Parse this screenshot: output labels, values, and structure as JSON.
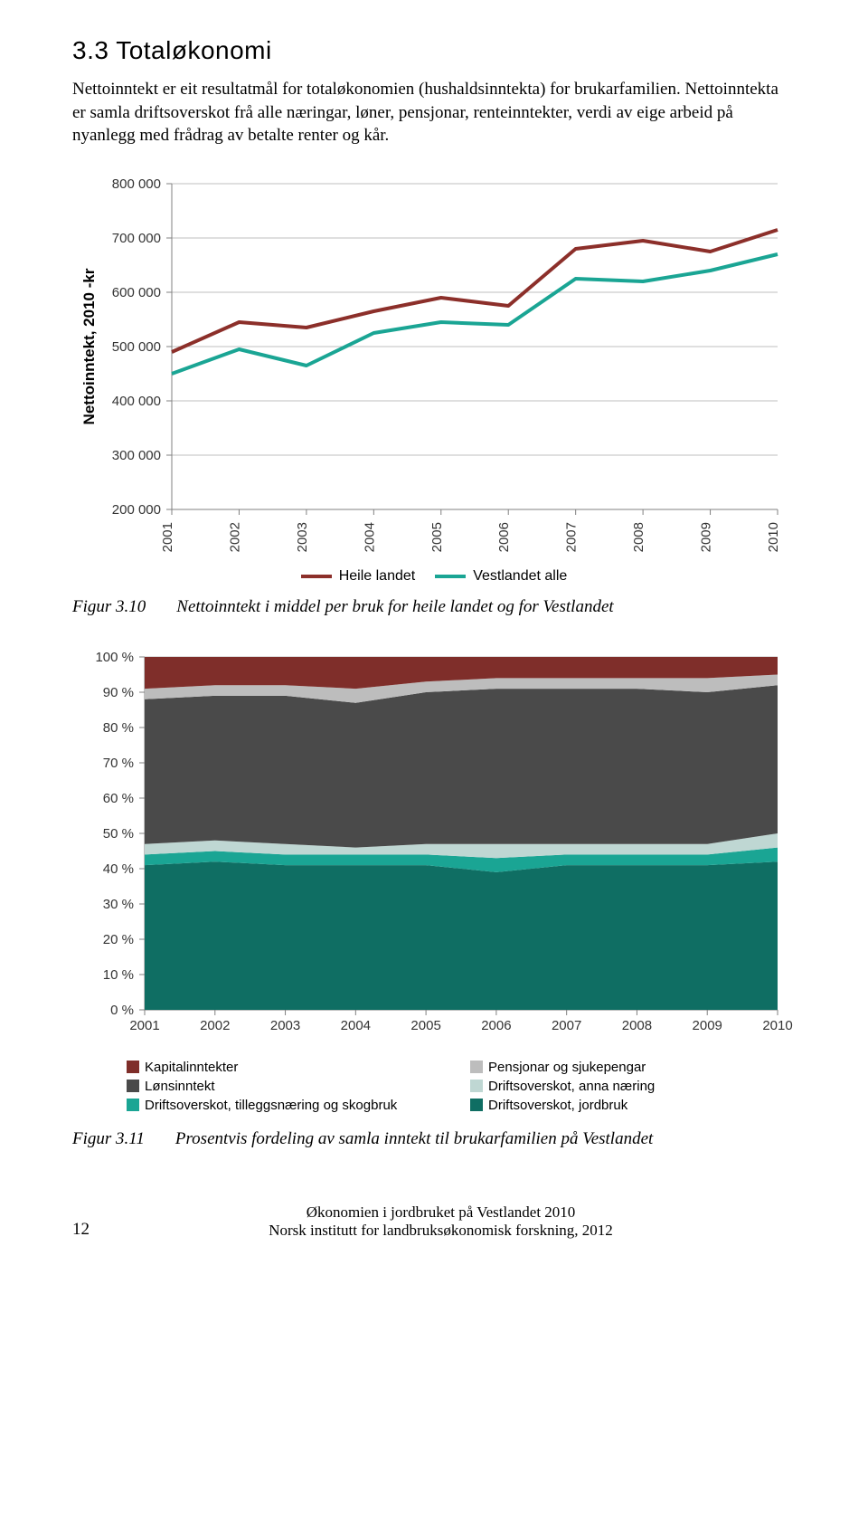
{
  "heading": "3.3   Totaløkonomi",
  "paragraph": "Nettoinntekt er eit resultatmål for totaløkonomien (hushaldsinntekta) for brukarfamilien. Nettoinntekta er samla driftsoverskot frå alle næringar, løner, pensjonar, renteinntekter, verdi av eige arbeid på nyanlegg med frådrag av betalte renter og kår.",
  "line_chart": {
    "type": "line",
    "y_label": "Nettoinntekt, 2010 -kr",
    "y_label_fontsize": 17,
    "ylim": [
      200000,
      800000
    ],
    "ytick_step": 100000,
    "y_ticks": [
      "200 000",
      "300 000",
      "400 000",
      "500 000",
      "600 000",
      "700 000",
      "800 000"
    ],
    "categories": [
      "2001",
      "2002",
      "2003",
      "2004",
      "2005",
      "2006",
      "2007",
      "2008",
      "2009",
      "2010"
    ],
    "grid_color": "#bfbfbf",
    "axis_color": "#808080",
    "background_color": "#ffffff",
    "tick_fontsize": 15,
    "line_width": 4,
    "series": [
      {
        "name": "Heile landet",
        "color": "#8c2f2a",
        "values": [
          490000,
          545000,
          535000,
          565000,
          590000,
          575000,
          680000,
          695000,
          675000,
          715000
        ]
      },
      {
        "name": "Vestlandet alle",
        "color": "#1aa594",
        "values": [
          450000,
          495000,
          465000,
          525000,
          545000,
          540000,
          625000,
          620000,
          640000,
          670000
        ]
      }
    ]
  },
  "figure1": {
    "label": "Figur 3.10",
    "caption": "Nettoinntekt i middel per bruk for heile landet og for Vestlandet"
  },
  "area_chart": {
    "type": "area_stacked",
    "ylim": [
      0,
      100
    ],
    "ytick_step": 10,
    "y_ticks": [
      "0 %",
      "10 %",
      "20 %",
      "30 %",
      "40 %",
      "50 %",
      "60 %",
      "70 %",
      "80 %",
      "90 %",
      "100 %"
    ],
    "categories": [
      "2001",
      "2002",
      "2003",
      "2004",
      "2005",
      "2006",
      "2007",
      "2008",
      "2009",
      "2010"
    ],
    "grid_color": "#bfbfbf",
    "axis_color": "#808080",
    "tick_fontsize": 15,
    "background_color": "#ffffff",
    "series_order": [
      "jordbruk",
      "tillegg",
      "anna",
      "lon",
      "pensjon",
      "kapital"
    ],
    "series": {
      "jordbruk": {
        "label": "Driftsoverskot, jordbruk",
        "color": "#0f6e63",
        "values": [
          41,
          42,
          41,
          41,
          41,
          39,
          41,
          41,
          41,
          42
        ]
      },
      "tillegg": {
        "label": "Driftsoverskot, tilleggsnæring og skogbruk",
        "color": "#1aa594",
        "values": [
          3,
          3,
          3,
          3,
          3,
          4,
          3,
          3,
          3,
          4
        ]
      },
      "anna": {
        "label": "Driftsoverskot, anna næring",
        "color": "#bfd7d3",
        "values": [
          3,
          3,
          3,
          2,
          3,
          4,
          3,
          3,
          3,
          4
        ]
      },
      "lon": {
        "label": "Lønsinntekt",
        "color": "#4a4a4a",
        "values": [
          41,
          41,
          42,
          41,
          43,
          44,
          44,
          44,
          43,
          42
        ]
      },
      "pensjon": {
        "label": "Pensjonar og sjukepengar",
        "color": "#bdbdbd",
        "values": [
          3,
          3,
          3,
          4,
          3,
          3,
          3,
          3,
          4,
          3
        ]
      },
      "kapital": {
        "label": "Kapitalinntekter",
        "color": "#7f2e2a",
        "values": [
          9,
          8,
          8,
          9,
          7,
          6,
          6,
          6,
          6,
          5
        ]
      }
    },
    "legend_layout": [
      [
        "kapital",
        "pensjon"
      ],
      [
        "lon",
        "anna"
      ],
      [
        "tillegg",
        "jordbruk"
      ]
    ]
  },
  "figure2": {
    "label": "Figur 3.11",
    "caption": "Prosentvis fordeling av samla inntekt til brukarfamilien på Vestlandet"
  },
  "footer": {
    "page": "12",
    "line1": "Økonomien i jordbruket på Vestlandet 2010",
    "line2": "Norsk institutt for landbruksøkonomisk forskning, 2012"
  }
}
